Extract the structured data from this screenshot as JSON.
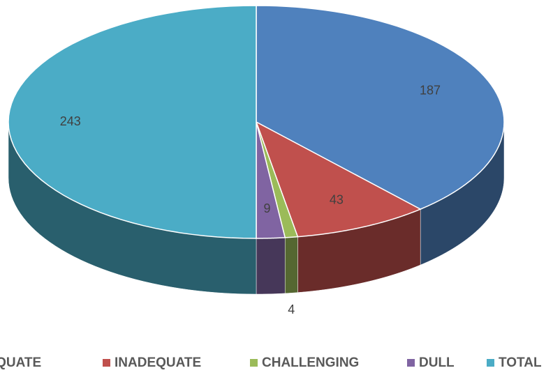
{
  "chart_data": {
    "type": "pie3d",
    "categories": [
      "ADEQUATE",
      "INADEQUATE",
      "CHALLENGING",
      "DULL",
      "TOTAL"
    ],
    "values": [
      187,
      43,
      4,
      9,
      243
    ],
    "colors": [
      "#4f81bd",
      "#c0504d",
      "#9bbb59",
      "#8064a2",
      "#4bacc6"
    ],
    "legend": "bottom"
  }
}
